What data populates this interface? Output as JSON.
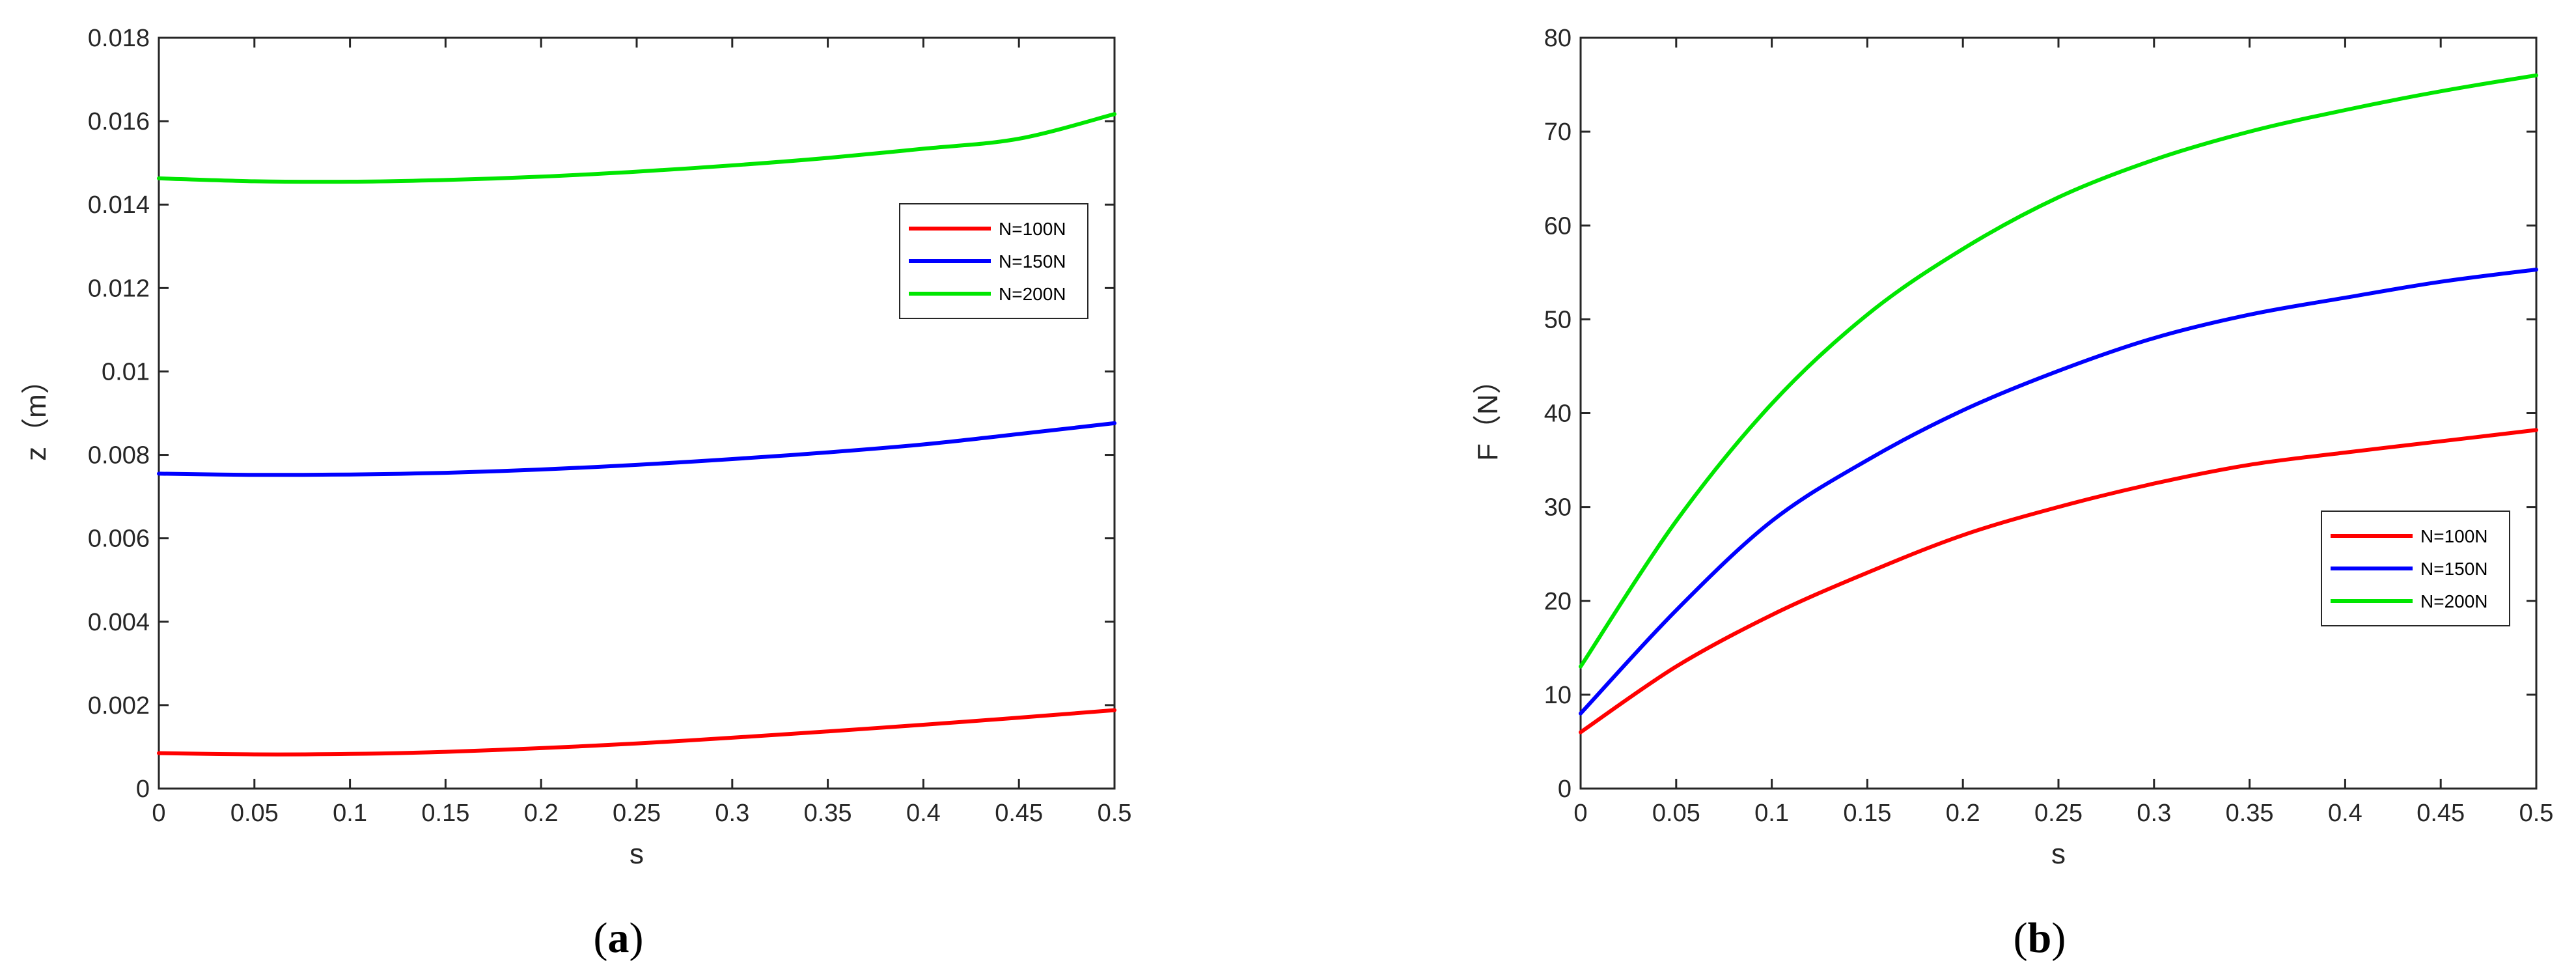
{
  "chart_data": [
    {
      "type": "line",
      "caption_letter": "a",
      "xlabel": "s",
      "ylabel": "z（m）",
      "xlim": [
        0,
        0.5
      ],
      "ylim": [
        0,
        0.018
      ],
      "xticks": [
        0,
        0.05,
        0.1,
        0.15,
        0.2,
        0.25,
        0.3,
        0.35,
        0.4,
        0.45,
        0.5
      ],
      "xtick_labels": [
        "0",
        "0.05",
        "0.1",
        "0.15",
        "0.2",
        "0.25",
        "0.3",
        "0.35",
        "0.4",
        "0.45",
        "0.5"
      ],
      "yticks": [
        0,
        0.002,
        0.004,
        0.006,
        0.008,
        0.01,
        0.012,
        0.014,
        0.016,
        0.018
      ],
      "ytick_labels": [
        "0",
        "0.002",
        "0.004",
        "0.006",
        "0.008",
        "0.01",
        "0.012",
        "0.014",
        "0.016",
        "0.018"
      ],
      "grid": false,
      "legend_position": "upper-right",
      "x": [
        0,
        0.05,
        0.1,
        0.15,
        0.2,
        0.25,
        0.3,
        0.35,
        0.4,
        0.45,
        0.5
      ],
      "series": [
        {
          "name": "N=100N",
          "color": "#ff0000",
          "values": [
            0.00085,
            0.00082,
            0.00083,
            0.00088,
            0.00097,
            0.00108,
            0.00122,
            0.00137,
            0.00153,
            0.0017,
            0.00188
          ]
        },
        {
          "name": "N=150N",
          "color": "#0000ff",
          "values": [
            0.00755,
            0.00752,
            0.00753,
            0.00757,
            0.00765,
            0.00776,
            0.0079,
            0.00806,
            0.00825,
            0.0085,
            0.00876
          ]
        },
        {
          "name": "N=200N",
          "color": "#00e600",
          "values": [
            0.01463,
            0.01456,
            0.01455,
            0.01459,
            0.01467,
            0.01479,
            0.01494,
            0.01512,
            0.01534,
            0.01558,
            0.01617
          ]
        }
      ]
    },
    {
      "type": "line",
      "caption_letter": "b",
      "xlabel": "s",
      "ylabel": "F（N）",
      "xlim": [
        0,
        0.5
      ],
      "ylim": [
        0,
        80
      ],
      "xticks": [
        0,
        0.05,
        0.1,
        0.15,
        0.2,
        0.25,
        0.3,
        0.35,
        0.4,
        0.45,
        0.5
      ],
      "xtick_labels": [
        "0",
        "0.05",
        "0.1",
        "0.15",
        "0.2",
        "0.25",
        "0.3",
        "0.35",
        "0.4",
        "0.45",
        "0.5"
      ],
      "yticks": [
        0,
        10,
        20,
        30,
        40,
        50,
        60,
        70,
        80
      ],
      "ytick_labels": [
        "0",
        "10",
        "20",
        "30",
        "40",
        "50",
        "60",
        "70",
        "80"
      ],
      "grid": false,
      "legend_position": "lower-right",
      "x": [
        0,
        0.05,
        0.1,
        0.15,
        0.2,
        0.25,
        0.3,
        0.35,
        0.4,
        0.45,
        0.5
      ],
      "series": [
        {
          "name": "N=100N",
          "color": "#ff0000",
          "values": [
            6,
            13,
            18.5,
            23,
            27,
            30,
            32.5,
            34.5,
            35.8,
            37,
            38.2
          ]
        },
        {
          "name": "N=150N",
          "color": "#0000ff",
          "values": [
            8,
            19,
            28.5,
            35,
            40.3,
            44.5,
            48,
            50.5,
            52.3,
            54,
            55.3
          ]
        },
        {
          "name": "N=200N",
          "color": "#00e600",
          "values": [
            13,
            28.5,
            41,
            50.5,
            57.5,
            63,
            67,
            70,
            72.3,
            74.3,
            76
          ]
        }
      ]
    }
  ]
}
